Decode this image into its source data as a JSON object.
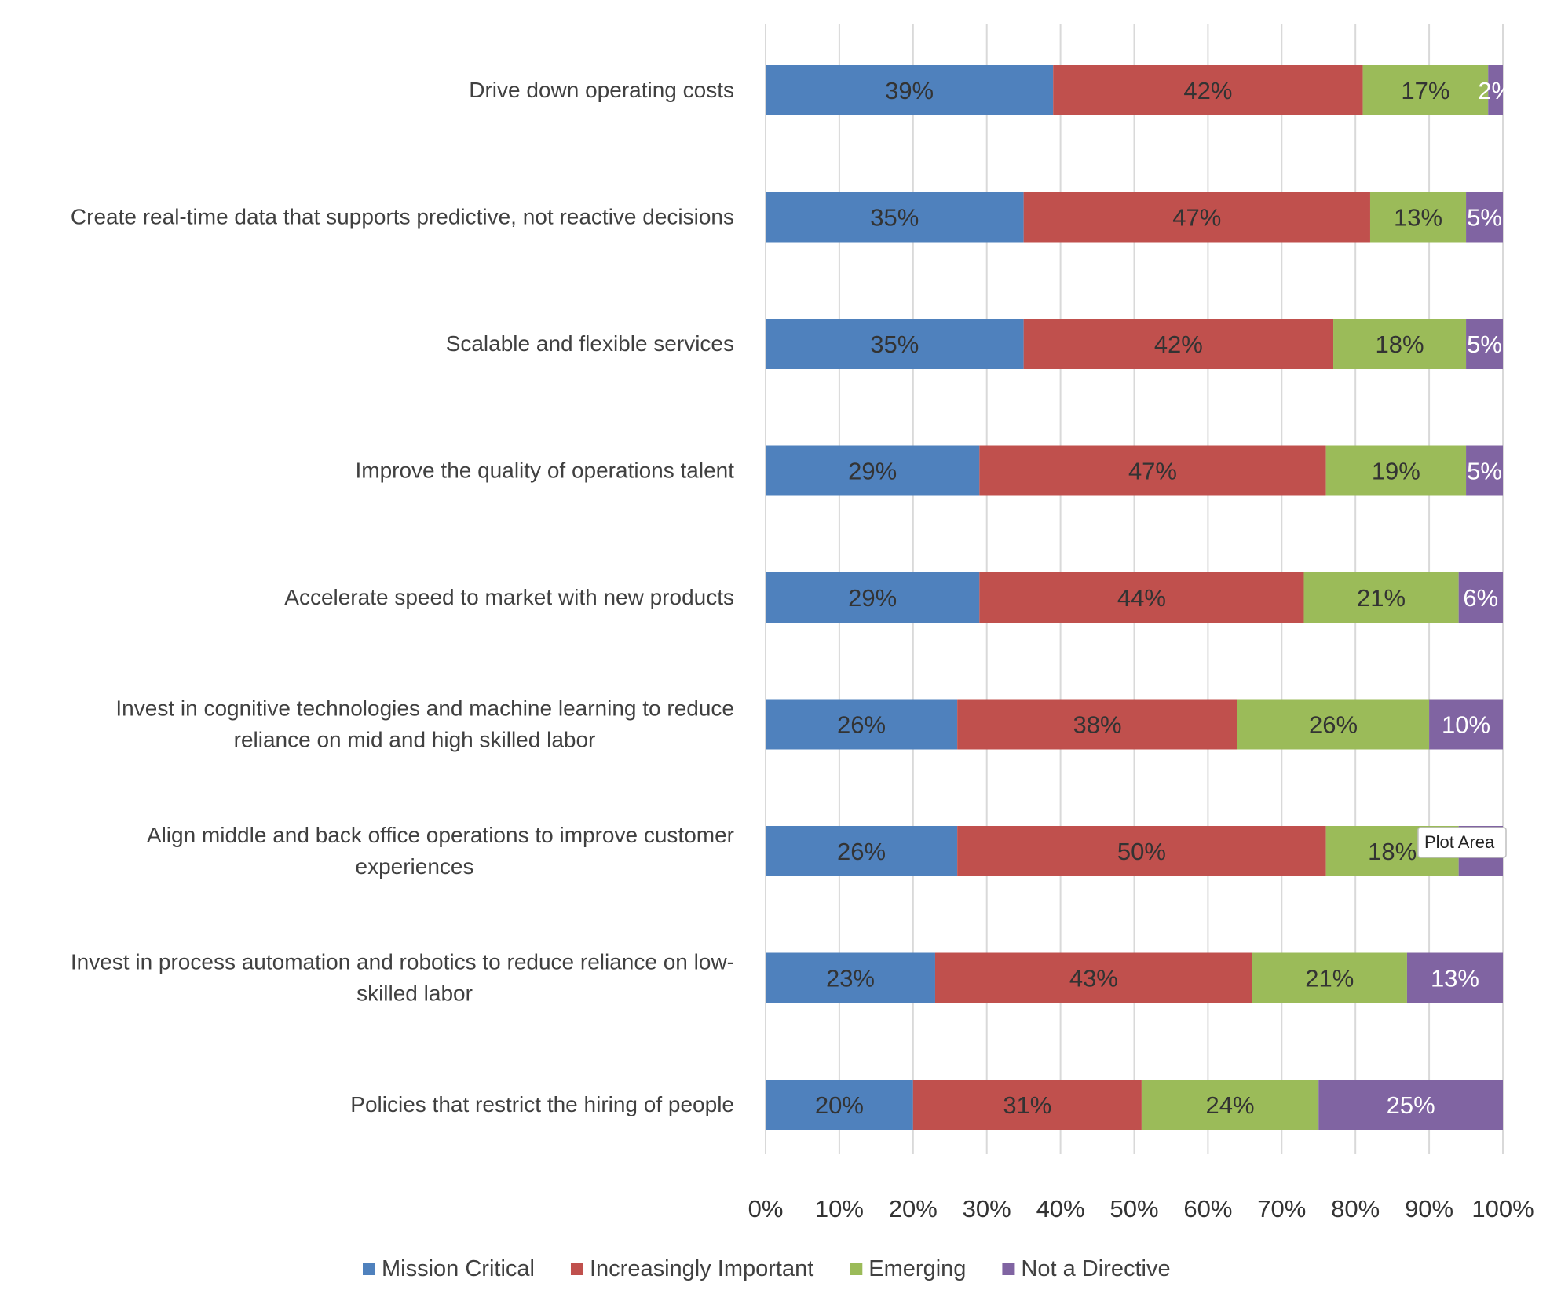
{
  "chart_data": {
    "type": "bar",
    "orientation": "horizontal",
    "stacked": true,
    "categories": [
      "Drive down operating costs",
      "Create real-time data that supports predictive, not reactive decisions",
      "Scalable and flexible services",
      "Improve the quality of operations talent",
      "Accelerate speed to market with new products",
      "Invest in cognitive technologies and machine learning to reduce reliance on mid and high skilled labor",
      "Align middle and back office operations to improve customer experiences",
      "Invest in process automation and robotics to reduce reliance on low-skilled labor",
      "Policies that restrict the hiring of people"
    ],
    "category_lines": [
      [
        "Drive down operating costs"
      ],
      [
        "Create real-time data that supports predictive, not reactive decisions"
      ],
      [
        "Scalable and flexible services"
      ],
      [
        "Improve the quality of operations talent"
      ],
      [
        "Accelerate speed to market with new products"
      ],
      [
        "Invest in cognitive technologies and machine learning to reduce",
        "reliance on mid and high skilled labor"
      ],
      [
        "Align middle and back office operations to improve customer",
        "experiences"
      ],
      [
        "Invest in process automation and robotics to reduce reliance on low-",
        "skilled labor"
      ],
      [
        "Policies that restrict the hiring of people"
      ]
    ],
    "series": [
      {
        "name": "Mission Critical",
        "color": "#4f81bd",
        "values": [
          39,
          35,
          35,
          29,
          29,
          26,
          26,
          23,
          20
        ]
      },
      {
        "name": "Increasingly Important",
        "color": "#c0504d",
        "values": [
          42,
          47,
          42,
          47,
          44,
          38,
          50,
          43,
          31
        ]
      },
      {
        "name": "Emerging",
        "color": "#9bbb59",
        "values": [
          17,
          13,
          18,
          19,
          21,
          26,
          18,
          21,
          24
        ]
      },
      {
        "name": "Not a Directive",
        "color": "#8064a2",
        "values": [
          2,
          5,
          5,
          5,
          6,
          10,
          6,
          13,
          25
        ]
      }
    ],
    "data_labels": [
      [
        "39%",
        "35%",
        "35%",
        "29%",
        "29%",
        "26%",
        "26%",
        "23%",
        "20%"
      ],
      [
        "42%",
        "47%",
        "42%",
        "47%",
        "44%",
        "38%",
        "50%",
        "43%",
        "31%"
      ],
      [
        "17%",
        "13%",
        "18%",
        "19%",
        "21%",
        "26%",
        "18%",
        "21%",
        "24%"
      ],
      [
        "2%",
        "5%",
        "5%",
        "5%",
        "6%",
        "10%",
        "",
        "13%",
        "25%"
      ]
    ],
    "label_colors": [
      "#333333",
      "#333333",
      "#333333",
      "#ffffff"
    ],
    "xlim": [
      0,
      100
    ],
    "xticks": [
      "0%",
      "10%",
      "20%",
      "30%",
      "40%",
      "50%",
      "60%",
      "70%",
      "80%",
      "90%",
      "100%"
    ],
    "grid": true,
    "gridline_color": "#d9d9d9",
    "legend_position": "bottom",
    "tooltip": {
      "text": "Plot Area",
      "category_index": 6
    }
  }
}
